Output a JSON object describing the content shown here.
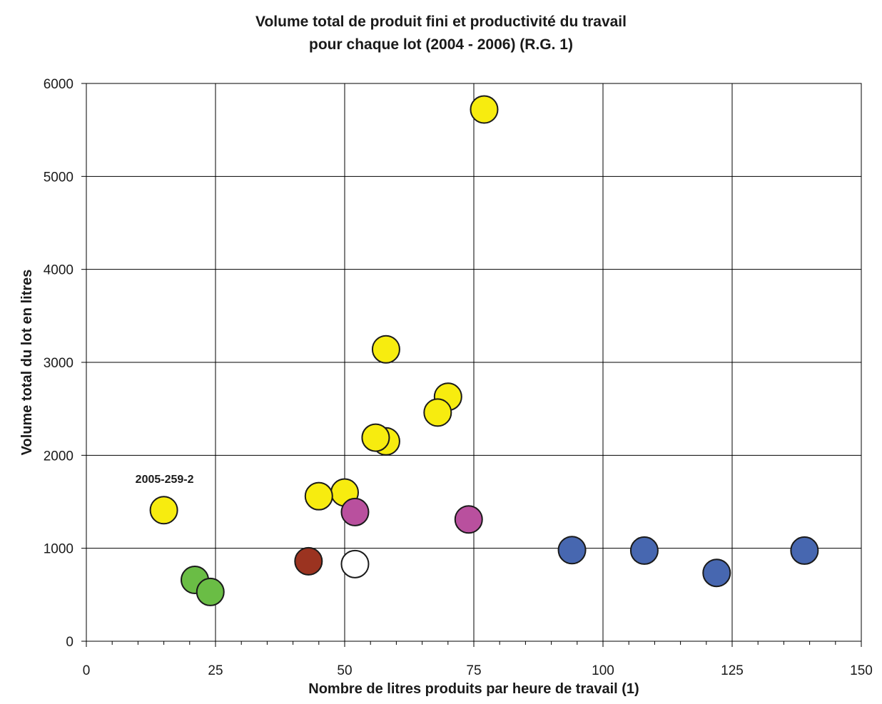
{
  "chart_data": {
    "type": "scatter",
    "title": [
      "Volume total de produit fini et productivité du travail",
      "pour chaque lot (2004 - 2006) (R.G. 1)"
    ],
    "xlabel": "Nombre de litres produits par heure de travail (1)",
    "ylabel": "Volume total du lot en litres",
    "xlim": [
      0,
      150
    ],
    "ylim": [
      0,
      6000
    ],
    "x_ticks": [
      "0",
      "25",
      "50",
      "75",
      "100",
      "125",
      "150"
    ],
    "y_ticks": [
      "0",
      "1000",
      "2000",
      "3000",
      "4000",
      "5000",
      "6000"
    ],
    "grid": true,
    "legend": "none",
    "annotations": [
      {
        "text": "2005-259-2",
        "x": 15,
        "y": 1410
      }
    ],
    "points": [
      {
        "x": 77,
        "y": 5720,
        "color": "#f7ec0f"
      },
      {
        "x": 58,
        "y": 3140,
        "color": "#f7ec0f"
      },
      {
        "x": 70,
        "y": 2630,
        "color": "#f7ec0f"
      },
      {
        "x": 68,
        "y": 2460,
        "color": "#f7ec0f"
      },
      {
        "x": 58,
        "y": 2150,
        "color": "#f7ec0f"
      },
      {
        "x": 56,
        "y": 2190,
        "color": "#f7ec0f"
      },
      {
        "x": 50,
        "y": 1600,
        "color": "#f7ec0f"
      },
      {
        "x": 45,
        "y": 1560,
        "color": "#f7ec0f"
      },
      {
        "x": 15,
        "y": 1410,
        "color": "#f7ec0f"
      },
      {
        "x": 52,
        "y": 1390,
        "color": "#b9509e"
      },
      {
        "x": 74,
        "y": 1310,
        "color": "#b9509e"
      },
      {
        "x": 43,
        "y": 860,
        "color": "#9b3320"
      },
      {
        "x": 52,
        "y": 830,
        "color": "#ffffff"
      },
      {
        "x": 21,
        "y": 660,
        "color": "#6abd45"
      },
      {
        "x": 24,
        "y": 530,
        "color": "#6abd45"
      },
      {
        "x": 94,
        "y": 980,
        "color": "#4767b0"
      },
      {
        "x": 108,
        "y": 975,
        "color": "#4767b0"
      },
      {
        "x": 139,
        "y": 975,
        "color": "#4767b0"
      },
      {
        "x": 122,
        "y": 735,
        "color": "#4767b0"
      }
    ]
  }
}
